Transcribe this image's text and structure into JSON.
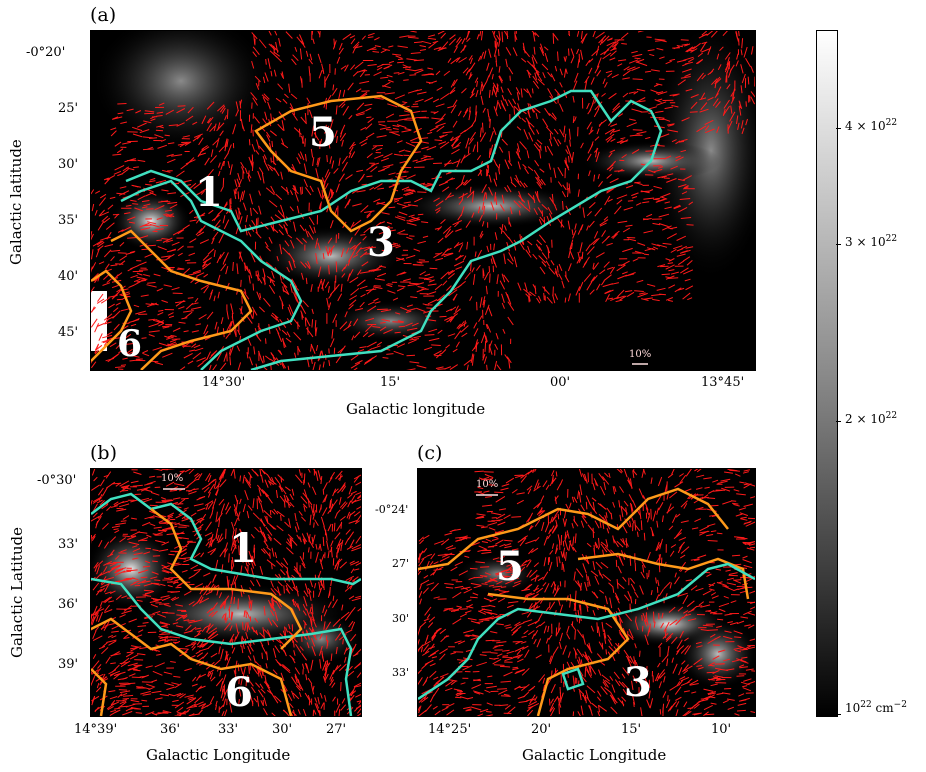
{
  "panels": {
    "a": {
      "label": "(a)",
      "xlabel": "Galactic longitude",
      "ylabel": "Galactic latitude",
      "xticks": [
        "14°30'",
        "15'",
        "00'",
        "13°45'"
      ],
      "yticks": [
        "-0°20'",
        "25'",
        "30'",
        "35'",
        "40'",
        "45'"
      ],
      "scale_label": "10%",
      "region_numbers": [
        "1",
        "3",
        "5",
        "6"
      ]
    },
    "b": {
      "label": "(b)",
      "xlabel": "Galactic Longitude",
      "ylabel": "Galactic Latitude",
      "xticks": [
        "14°39'",
        "36'",
        "33'",
        "30'",
        "27'"
      ],
      "yticks": [
        "-0°30'",
        "33'",
        "36'",
        "39'"
      ],
      "scale_label": "10%",
      "region_numbers": [
        "1",
        "6"
      ]
    },
    "c": {
      "label": "(c)",
      "xlabel": "Galactic Longitude",
      "xticks": [
        "14°25'",
        "20'",
        "15'",
        "10'"
      ],
      "yticks": [
        "-0°24'",
        "27'",
        "30'",
        "33'"
      ],
      "scale_label": "10%",
      "region_numbers": [
        "5",
        "3"
      ]
    }
  },
  "colorbar": {
    "ticks": [
      {
        "base": "4 × 10",
        "exp": "22",
        "value": 4e+22
      },
      {
        "base": "3 × 10",
        "exp": "22",
        "value": 3e+22
      },
      {
        "base": "2 × 10",
        "exp": "22",
        "value": 2e+22
      },
      {
        "base": "10",
        "exp": "22",
        "unit": " cm",
        "unit_exp": "−2",
        "value": 1e+22
      }
    ],
    "colormap": "gray",
    "colors": {
      "low": "#000000",
      "high": "#ffffff"
    }
  },
  "overlay_colors": {
    "vectors": "#ff1a1a",
    "contour_cyan": "#40e0c0",
    "contour_orange": "#ff9a1a"
  }
}
